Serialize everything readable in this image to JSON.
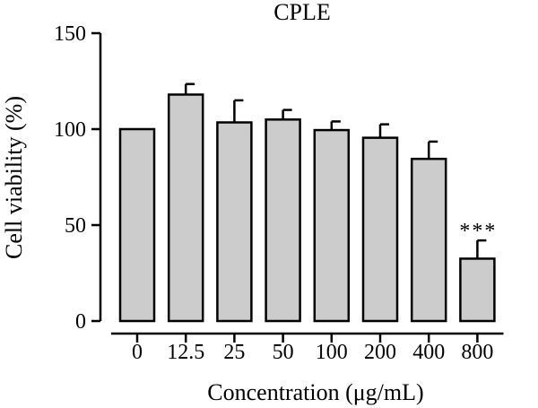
{
  "chart_data": {
    "type": "bar",
    "title": "CPLE",
    "xlabel": "Concentration (μg/mL)",
    "ylabel": "Cell viability (%)",
    "categories": [
      "0",
      "12.5",
      "25",
      "50",
      "100",
      "200",
      "400",
      "800"
    ],
    "values": [
      100,
      118,
      103.5,
      105,
      99.5,
      95.5,
      84.5,
      32.5
    ],
    "errors": [
      0,
      5.5,
      11.5,
      5,
      4.5,
      7,
      9,
      9.5
    ],
    "annotations": [
      {
        "category": "800",
        "text": "***"
      }
    ],
    "ylim": [
      0,
      150
    ],
    "yticks": [
      0,
      50,
      100,
      150
    ],
    "grid": false,
    "colors": {
      "bar_fill": "#cccccc",
      "edge": "#000000"
    }
  }
}
